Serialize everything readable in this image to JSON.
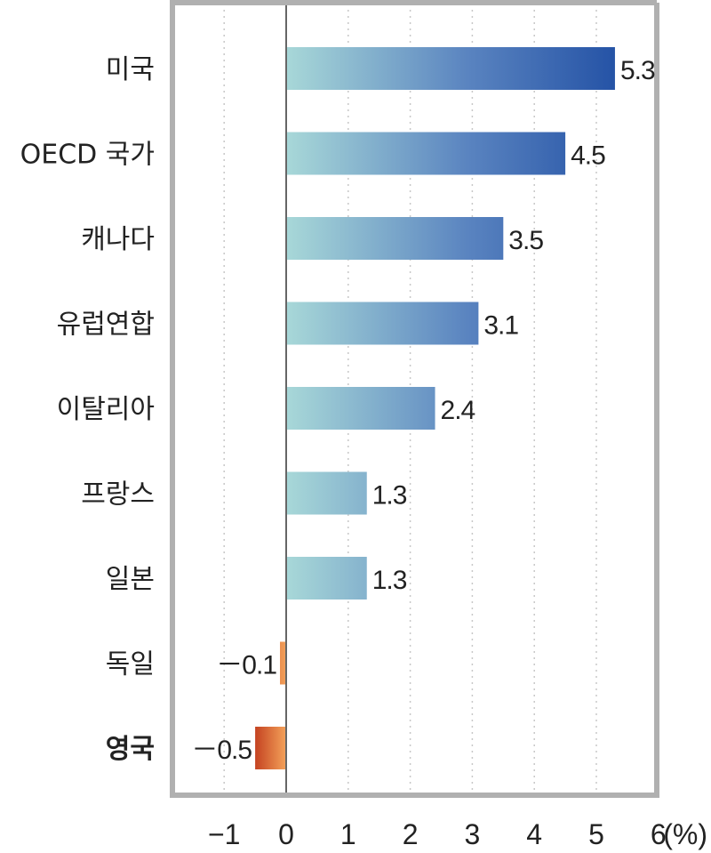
{
  "chart_data": {
    "type": "bar",
    "orientation": "horizontal",
    "categories": [
      "미국",
      "OECD 국가",
      "캐나다",
      "유럽연합",
      "이탈리아",
      "프랑스",
      "일본",
      "독일",
      "영국"
    ],
    "values": [
      5.3,
      4.5,
      3.5,
      3.1,
      2.4,
      1.3,
      1.3,
      -0.1,
      -0.5
    ],
    "value_labels": [
      "5.3",
      "4.5",
      "3.5",
      "3.1",
      "2.4",
      "1.3",
      "1.3",
      "－0.1",
      "－0.5"
    ],
    "highlight_category": "영국",
    "xlim": [
      -1.9,
      6
    ],
    "x_ticks": [
      -1,
      0,
      1,
      2,
      3,
      4,
      5,
      6
    ],
    "x_tick_labels": [
      "−1",
      "0",
      "1",
      "2",
      "3",
      "4",
      "5",
      "6"
    ],
    "unit_label": "(%)",
    "grid": "vertical dotted",
    "colors": {
      "positive_gradient_start": "#a8d8d8",
      "positive_gradient_end": "#2553a6",
      "negative_gradient_start": "#c03a1c",
      "negative_gradient_end": "#f4a25a",
      "frame": "#b0b0b0",
      "grid": "#c8c8c8",
      "zero_line": "#666666"
    }
  }
}
